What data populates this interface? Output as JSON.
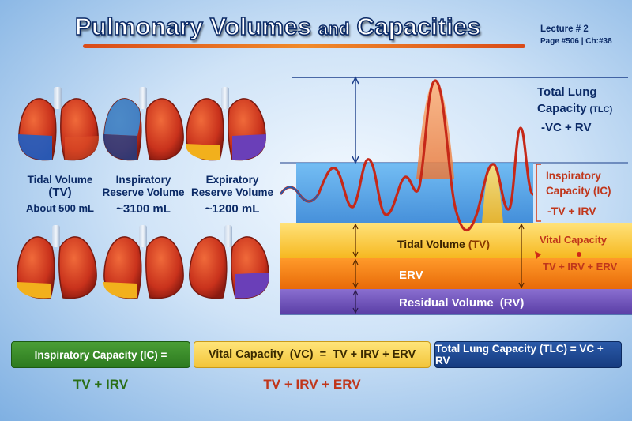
{
  "header": {
    "title_main": "Pulmonary Volumes",
    "title_and": "and",
    "title_end": "Capacities",
    "lecture": "Lecture # 2",
    "page_ref": "Page #506 | Ch:#38"
  },
  "lungs": {
    "tv": {
      "name_1": "Tidal Volume",
      "name_2": "(TV)",
      "value": "About 500 mL"
    },
    "irv": {
      "name_1": "Inspiratory",
      "name_2": "Reserve Volume",
      "value": "~3100 mL"
    },
    "erv": {
      "name_1": "Expiratory",
      "name_2": "Reserve Volume",
      "value": "~1200 mL"
    }
  },
  "diagram": {
    "tlc_line1": "Total Lung",
    "tlc_line2": "Capacity",
    "tlc_abbr": "(TLC)",
    "tlc_formula": "-VC + RV",
    "ic_line1": "Inspiratory",
    "ic_line2": "Capacity (IC)",
    "ic_formula": "-TV + IRV",
    "tv_band": "Tidal Volume",
    "tv_abbr": "(TV)",
    "erv_band": "ERV",
    "rv_band": "Residual Volume",
    "rv_abbr": "(RV)",
    "vc_label": "Vital Capacity",
    "vc_formula": "TV + IRV + ERV"
  },
  "formulas": {
    "ic_box": "Inspiratory Capacity (IC) =",
    "ic_sub": "TV + IRV",
    "vc_box_label": "Vital Capacity  (VC)  =  TV + IRV + ERV",
    "vc_sub": "TV + IRV + ERV",
    "tlc_box": "Total Lung Capacity (TLC) = VC + RV"
  },
  "colors": {
    "navy": "#0b2a66",
    "red": "#c0361b",
    "irv_blue": "#2f8fe0",
    "tv_yellow": "#f8c52a",
    "erv_orange": "#f07a10",
    "rv_purple": "#6a4bb0"
  }
}
